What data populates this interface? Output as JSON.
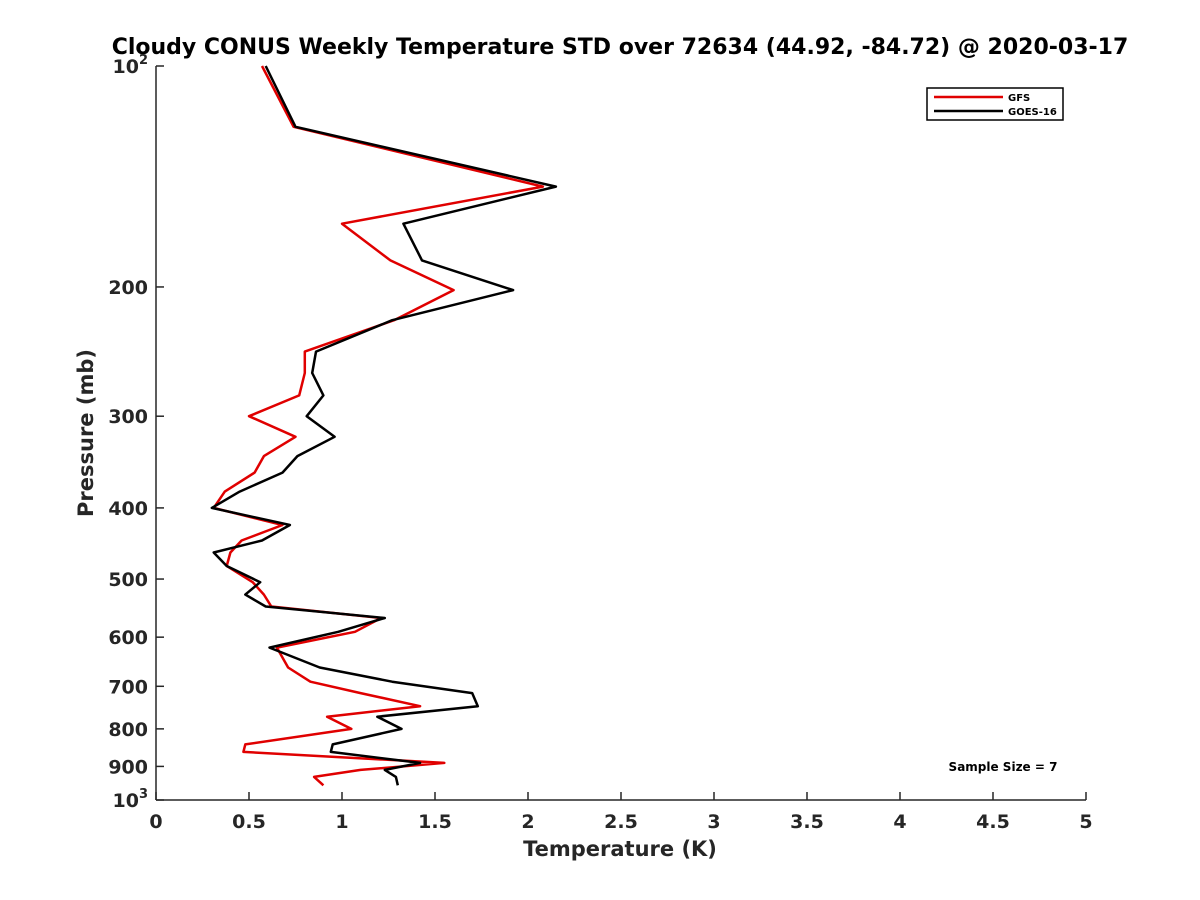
{
  "chart_data": {
    "type": "line",
    "title": "Cloudy CONUS Weekly Temperature STD over 72634 (44.92, -84.72) @ 2020-03-17",
    "xlabel": "Temperature (K)",
    "ylabel": "Pressure (mb)",
    "xlim": [
      0,
      5
    ],
    "ylim": [
      100,
      1000
    ],
    "y_scale": "log",
    "y_reversed": true,
    "x_ticks": [
      "0",
      "0.5",
      "1",
      "1.5",
      "2",
      "2.5",
      "3",
      "3.5",
      "4",
      "4.5",
      "5"
    ],
    "y_ticks": [
      {
        "value": 100,
        "label": "10",
        "sup": "2"
      },
      {
        "value": 200,
        "label": "200",
        "sup": ""
      },
      {
        "value": 300,
        "label": "300",
        "sup": ""
      },
      {
        "value": 400,
        "label": "400",
        "sup": ""
      },
      {
        "value": 500,
        "label": "500",
        "sup": ""
      },
      {
        "value": 600,
        "label": "600",
        "sup": ""
      },
      {
        "value": 700,
        "label": "700",
        "sup": ""
      },
      {
        "value": 800,
        "label": "800",
        "sup": ""
      },
      {
        "value": 900,
        "label": "900",
        "sup": ""
      },
      {
        "value": 1000,
        "label": "10",
        "sup": "3"
      }
    ],
    "grid": false,
    "legend_position": "top-right",
    "annotation": "Sample Size = 7",
    "series": [
      {
        "name": "GFS",
        "color": "#e00000",
        "points": [
          [
            0.57,
            100
          ],
          [
            0.74,
            121
          ],
          [
            2.08,
            146
          ],
          [
            1.0,
            164
          ],
          [
            1.26,
            184
          ],
          [
            1.6,
            202
          ],
          [
            1.28,
            222
          ],
          [
            0.8,
            245
          ],
          [
            0.8,
            262
          ],
          [
            0.77,
            281
          ],
          [
            0.5,
            300
          ],
          [
            0.75,
            320
          ],
          [
            0.58,
            340
          ],
          [
            0.53,
            358
          ],
          [
            0.37,
            380
          ],
          [
            0.31,
            400
          ],
          [
            0.68,
            422
          ],
          [
            0.46,
            443
          ],
          [
            0.4,
            460
          ],
          [
            0.38,
            480
          ],
          [
            0.52,
            505
          ],
          [
            0.58,
            525
          ],
          [
            0.62,
            545
          ],
          [
            1.21,
            565
          ],
          [
            1.07,
            590
          ],
          [
            0.65,
            620
          ],
          [
            0.71,
            660
          ],
          [
            0.83,
            690
          ],
          [
            1.1,
            715
          ],
          [
            1.42,
            745
          ],
          [
            0.92,
            770
          ],
          [
            1.05,
            800
          ],
          [
            0.48,
            840
          ],
          [
            0.47,
            860
          ],
          [
            1.55,
            890
          ],
          [
            1.1,
            910
          ],
          [
            0.85,
            930
          ],
          [
            0.9,
            955
          ]
        ]
      },
      {
        "name": "GOES-16",
        "color": "#000000",
        "points": [
          [
            0.59,
            100
          ],
          [
            0.75,
            121
          ],
          [
            2.15,
            146
          ],
          [
            1.33,
            164
          ],
          [
            1.43,
            184
          ],
          [
            1.92,
            202
          ],
          [
            1.27,
            222
          ],
          [
            0.86,
            245
          ],
          [
            0.84,
            262
          ],
          [
            0.9,
            281
          ],
          [
            0.81,
            300
          ],
          [
            0.96,
            320
          ],
          [
            0.76,
            340
          ],
          [
            0.68,
            358
          ],
          [
            0.45,
            380
          ],
          [
            0.3,
            400
          ],
          [
            0.72,
            422
          ],
          [
            0.57,
            443
          ],
          [
            0.31,
            460
          ],
          [
            0.38,
            480
          ],
          [
            0.56,
            505
          ],
          [
            0.48,
            525
          ],
          [
            0.59,
            545
          ],
          [
            1.23,
            565
          ],
          [
            0.98,
            590
          ],
          [
            0.61,
            620
          ],
          [
            0.88,
            660
          ],
          [
            1.27,
            690
          ],
          [
            1.7,
            715
          ],
          [
            1.73,
            745
          ],
          [
            1.19,
            770
          ],
          [
            1.32,
            800
          ],
          [
            0.95,
            840
          ],
          [
            0.94,
            860
          ],
          [
            1.42,
            890
          ],
          [
            1.23,
            910
          ],
          [
            1.29,
            930
          ],
          [
            1.3,
            955
          ]
        ]
      }
    ]
  }
}
